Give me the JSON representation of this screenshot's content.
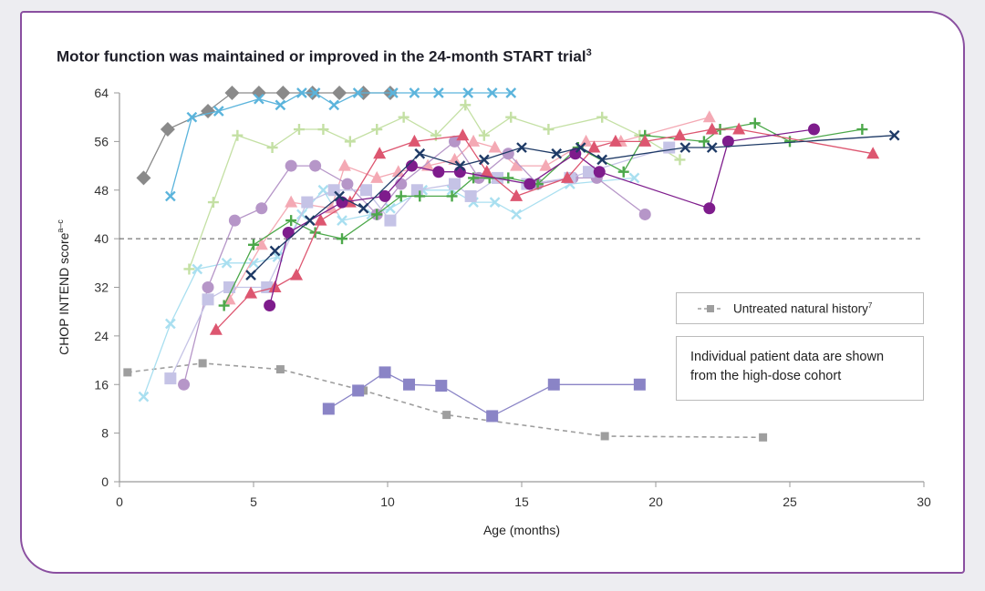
{
  "title": "Motor function was maintained or improved in the 24-month START trial",
  "title_sup": "3",
  "legend": {
    "label": "Untreated natural history",
    "label_sup": "7"
  },
  "note": {
    "line1": "Individual patient data are shown",
    "line2": "from the high-dose cohort"
  },
  "chart_data": {
    "type": "line",
    "title": "Motor function was maintained or improved in the 24-month START trial",
    "xlabel": "Age (months)",
    "ylabel": "CHOP INTEND score",
    "ylabel_sup": "a–c",
    "xlim": [
      0,
      30
    ],
    "ylim": [
      0,
      64
    ],
    "xticks": [
      0,
      5,
      10,
      15,
      20,
      25,
      30
    ],
    "yticks": [
      0,
      8,
      16,
      24,
      32,
      40,
      48,
      56,
      64
    ],
    "grid": false,
    "legend_position": "right",
    "reference_line": {
      "y": 40,
      "style": "dashed"
    },
    "series": [
      {
        "name": "Untreated natural history",
        "marker": "square-small",
        "color": "#9e9e9e",
        "dashed": true,
        "x": [
          0.3,
          3.1,
          6.0,
          9.1,
          12.2,
          18.1,
          24.0
        ],
        "y": [
          18,
          19.5,
          18.5,
          15,
          11,
          7.5,
          7.3
        ]
      },
      {
        "marker": "diamond",
        "color": "#8a8a8a",
        "x": [
          0.9,
          1.8,
          3.3,
          4.2,
          5.2,
          6.1,
          7.2,
          8.2,
          9.1,
          10.1
        ],
        "y": [
          50,
          58,
          61,
          64,
          64,
          64,
          64,
          64,
          64,
          64
        ]
      },
      {
        "marker": "x",
        "color": "#5bb4dc",
        "x": [
          1.9,
          2.7,
          3.7,
          5.2,
          6.0,
          6.8,
          7.3,
          8.0,
          8.9,
          10.2,
          11.0,
          11.9,
          13.0,
          13.9,
          14.6
        ],
        "y": [
          47,
          60,
          61,
          63,
          62,
          64,
          64,
          62,
          64,
          64,
          64,
          64,
          64,
          64,
          64
        ]
      },
      {
        "marker": "square",
        "color": "#8a84c6",
        "x": [
          7.8,
          8.9,
          9.9,
          10.8,
          12.0,
          13.9,
          16.2,
          19.4
        ],
        "y": [
          12,
          15,
          18,
          16,
          15.8,
          10.8,
          16,
          16
        ]
      },
      {
        "marker": "x",
        "color": "#a9dff0",
        "x": [
          0.9,
          1.9,
          2.9,
          4.0,
          5.0,
          5.9,
          6.8,
          7.6,
          8.3,
          9.4,
          10.1,
          11.3,
          12.4,
          13.2,
          14.0,
          14.8,
          16.8,
          19.2
        ],
        "y": [
          14,
          26,
          35,
          36,
          36,
          37,
          44,
          48,
          43,
          44,
          45,
          48,
          48,
          46,
          46,
          44,
          49,
          50
        ]
      },
      {
        "marker": "plus",
        "color": "#c4e0a4",
        "x": [
          2.6,
          3.5,
          4.4,
          5.7,
          6.7,
          7.6,
          8.6,
          9.6,
          10.6,
          11.8,
          12.9,
          13.6,
          14.6,
          16.0,
          18.0,
          19.4,
          20.9
        ],
        "y": [
          35,
          46,
          57,
          55,
          58,
          58,
          56,
          58,
          60,
          57,
          62,
          57,
          60,
          58,
          60,
          57,
          53
        ]
      },
      {
        "marker": "triangle",
        "color": "#f4a9b4",
        "x": [
          4.1,
          5.3,
          6.4,
          7.9,
          8.4,
          9.6,
          10.4,
          11.5,
          12.5,
          13.2,
          14.0,
          14.8,
          15.9,
          17.4,
          18.7,
          22.0
        ],
        "y": [
          30,
          39,
          46,
          45,
          52,
          50,
          51,
          52,
          53,
          56,
          55,
          52,
          52,
          56,
          56,
          60
        ]
      },
      {
        "marker": "circle",
        "color": "#b696c8",
        "x": [
          2.4,
          3.3,
          4.3,
          5.3,
          6.4,
          7.3,
          8.5,
          9.6,
          10.5,
          12.5,
          13.4,
          14.5,
          15.6,
          16.9,
          17.8,
          19.6
        ],
        "y": [
          16,
          32,
          43,
          45,
          52,
          52,
          49,
          44,
          49,
          56,
          50,
          54,
          49,
          50,
          50,
          44
        ]
      },
      {
        "marker": "square",
        "color": "#c5c3e6",
        "x": [
          1.9,
          3.3,
          4.1,
          5.5,
          7.0,
          8.0,
          9.2,
          10.1,
          11.1,
          12.5,
          13.1,
          14.1,
          15.2,
          16.8,
          17.5,
          20.5
        ],
        "y": [
          17,
          30,
          32,
          32,
          46,
          48,
          48,
          43,
          48,
          49,
          47,
          50,
          49,
          50,
          51,
          55
        ]
      },
      {
        "marker": "plus",
        "color": "#4ca84a",
        "x": [
          3.9,
          5.0,
          6.4,
          7.3,
          8.3,
          9.6,
          10.5,
          11.2,
          12.4,
          13.2,
          13.8,
          14.5,
          15.6,
          17.1,
          18.8,
          19.6,
          21.8,
          22.4,
          23.7,
          25.0,
          27.7
        ],
        "y": [
          29,
          39,
          43,
          41,
          40,
          44,
          47,
          47,
          47,
          50,
          50,
          50,
          49,
          55,
          51,
          57,
          56,
          58,
          59,
          56,
          58
        ]
      },
      {
        "marker": "triangle",
        "color": "#dd5670",
        "x": [
          3.6,
          4.9,
          5.8,
          6.6,
          7.5,
          8.6,
          9.7,
          11.0,
          12.8,
          13.7,
          14.8,
          16.7,
          17.7,
          18.5,
          19.6,
          20.9,
          22.1,
          23.1,
          28.1
        ],
        "y": [
          25,
          31,
          32,
          34,
          43,
          46,
          54,
          56,
          57,
          51,
          47,
          50,
          55,
          56,
          56,
          57,
          58,
          58,
          54
        ]
      },
      {
        "marker": "circle",
        "color": "#7e1c8c",
        "x": [
          5.6,
          6.3,
          8.3,
          9.9,
          10.9,
          11.9,
          12.7,
          15.3,
          17.0,
          17.9,
          22.0,
          22.7,
          25.9
        ],
        "y": [
          29,
          41,
          46,
          47,
          52,
          51,
          51,
          49,
          54,
          51,
          45,
          56,
          58
        ]
      },
      {
        "marker": "x",
        "color": "#1e3a66",
        "x": [
          4.9,
          5.8,
          7.1,
          8.2,
          9.1,
          11.2,
          12.7,
          13.6,
          15.0,
          16.3,
          17.2,
          18.0,
          21.1,
          22.1,
          28.9
        ],
        "y": [
          34,
          38,
          43,
          47,
          45,
          54,
          52,
          53,
          55,
          54,
          55,
          53,
          55,
          55,
          57
        ]
      }
    ]
  }
}
